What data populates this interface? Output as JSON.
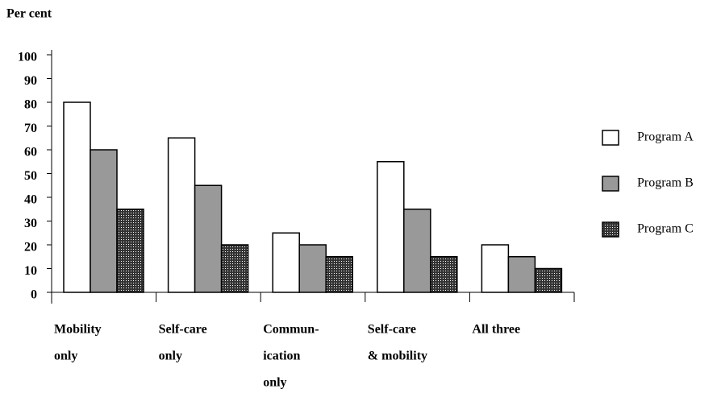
{
  "chart_data": {
    "type": "bar",
    "y_label": "Per cent",
    "categories": [
      [
        "Mobility",
        "only"
      ],
      [
        "Self-care",
        "only"
      ],
      [
        "Commun-",
        "ication",
        "only"
      ],
      [
        "Self-care",
        "& mobility"
      ],
      [
        "All three"
      ]
    ],
    "series": [
      {
        "name": "Program A",
        "color": "#ffffff",
        "values": [
          80,
          65,
          25,
          55,
          20
        ]
      },
      {
        "name": "Program B",
        "color": "#999999",
        "values": [
          60,
          45,
          20,
          35,
          15
        ]
      },
      {
        "name": "Program C",
        "color": "#333333",
        "values": [
          35,
          20,
          15,
          15,
          10
        ]
      }
    ],
    "ylim": [
      0,
      100
    ],
    "yticks": [
      0,
      10,
      20,
      30,
      40,
      50,
      60,
      70,
      80,
      90,
      100
    ]
  }
}
